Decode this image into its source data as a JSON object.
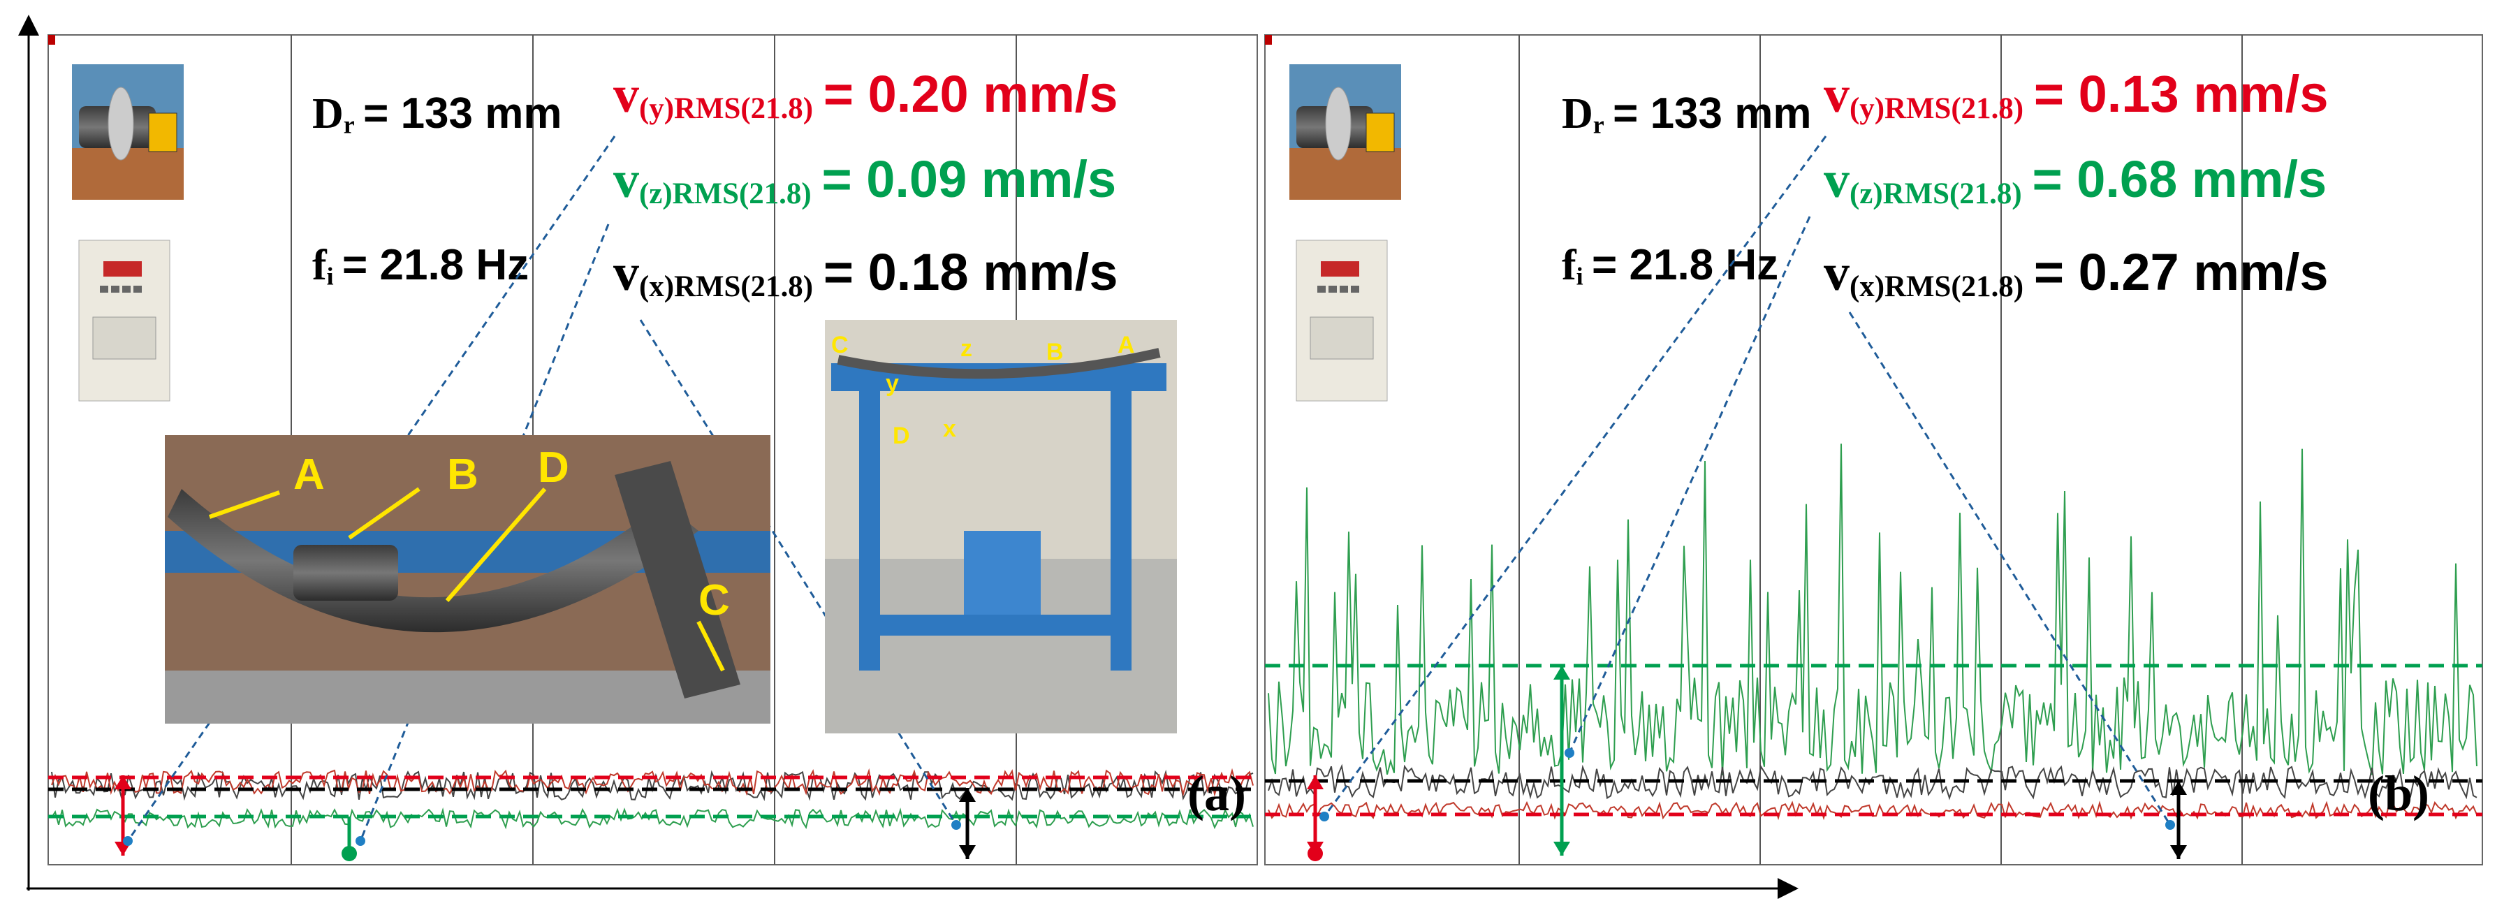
{
  "panels": [
    {
      "label": "(a)",
      "diameter": {
        "symbol": "D",
        "subscript": "r",
        "text": "= 133 mm"
      },
      "frequency": {
        "symbol": "f",
        "subscript": "i",
        "text": "= 21.8 Hz"
      },
      "measurements": [
        {
          "symbol": "v",
          "subscript": "(y)RMS(21.8)",
          "text": "= 0.20 mm/s"
        },
        {
          "symbol": "v",
          "subscript": "(z)RMS(21.8)",
          "text": "= 0.09 mm/s"
        },
        {
          "symbol": "v",
          "subscript": "(x)RMS(21.8)",
          "text": "= 0.18 mm/s"
        }
      ],
      "photo_labels": {
        "main": [
          "A",
          "B",
          "D",
          "C"
        ],
        "setup": [
          "C",
          "z",
          "y",
          "B",
          "A",
          "D",
          "x"
        ]
      }
    },
    {
      "label": "(b)",
      "diameter": {
        "symbol": "D",
        "subscript": "r",
        "text": "= 133 mm"
      },
      "frequency": {
        "symbol": "f",
        "subscript": "i",
        "text": "= 21.8 Hz"
      },
      "measurements": [
        {
          "symbol": "v",
          "subscript": "(y)RMS(21.8)",
          "text": "= 0.13 mm/s"
        },
        {
          "symbol": "v",
          "subscript": "(z)RMS(21.8)",
          "text": "= 0.68 mm/s"
        },
        {
          "symbol": "v",
          "subscript": "(x)RMS(21.8)",
          "text": "= 0.27 mm/s"
        }
      ]
    }
  ]
}
